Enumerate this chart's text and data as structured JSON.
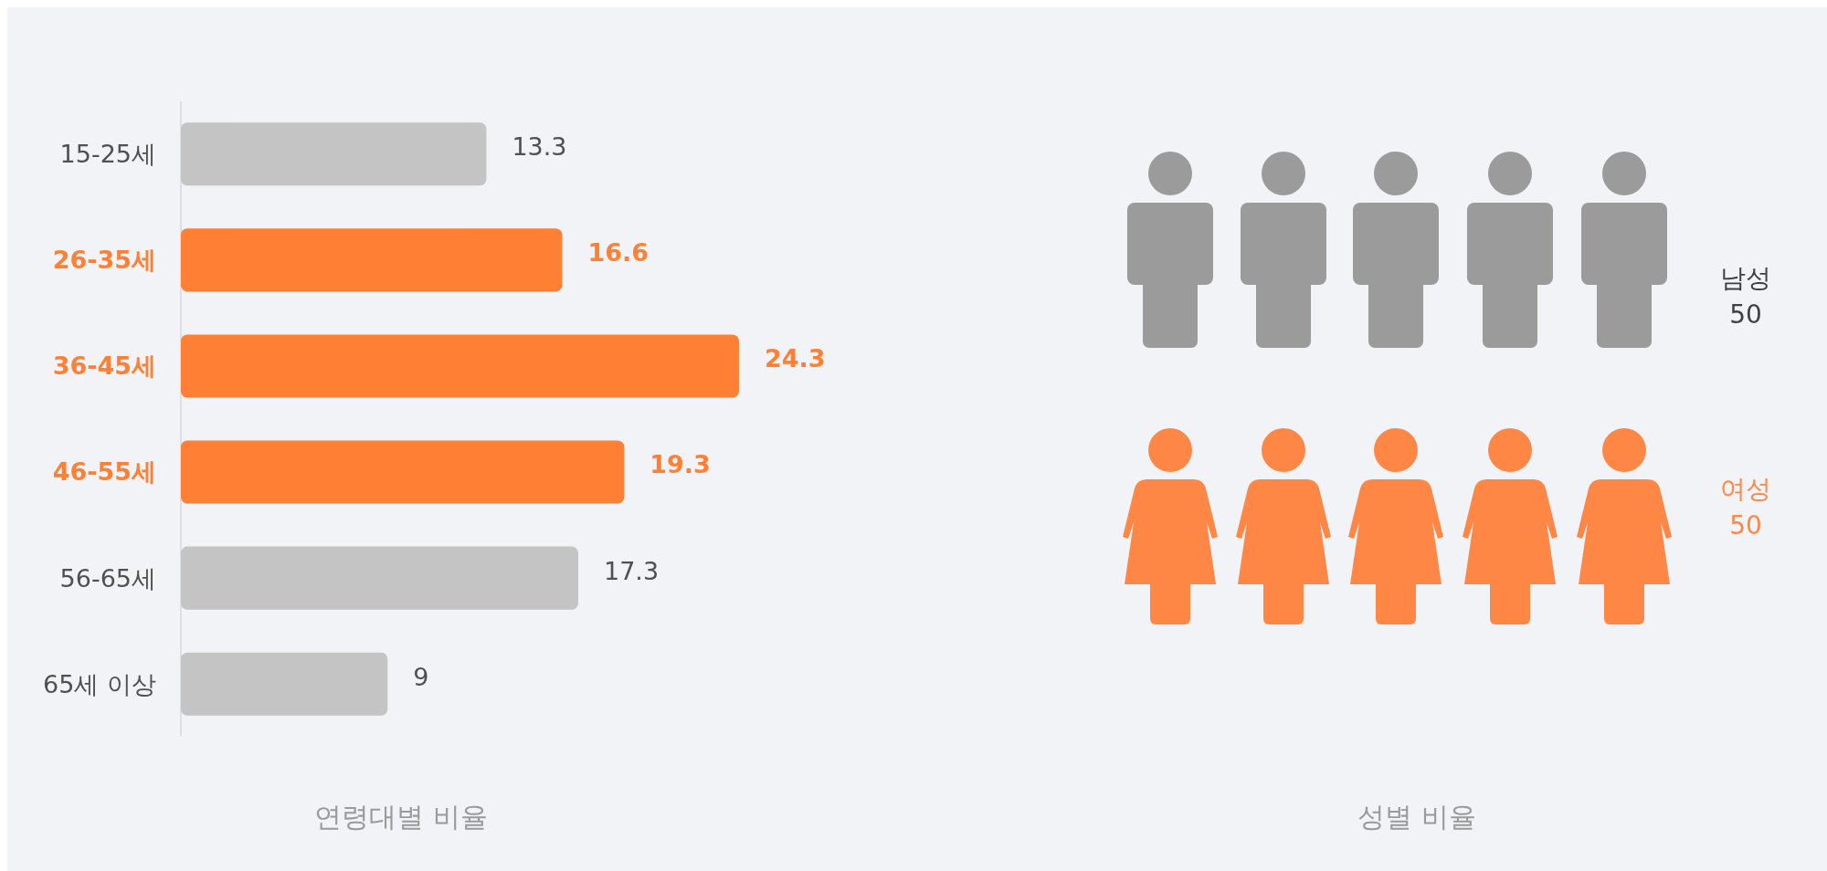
{
  "chart_data": [
    {
      "type": "bar",
      "orientation": "horizontal",
      "xlabel": "연령대별 비율",
      "categories": [
        "15-25세",
        "26-35세",
        "36-45세",
        "46-55세",
        "56-65세",
        "65세 이상"
      ],
      "values": [
        13.3,
        16.6,
        24.3,
        19.3,
        17.3,
        9
      ],
      "colors": [
        "#c4c4c4",
        "#ff8035",
        "#ff8035",
        "#ff8035",
        "#c4c4c4",
        "#c4c4c4"
      ],
      "data_labels": true
    },
    {
      "type": "other",
      "xlabel": "성별 비율",
      "categories": [
        "남성",
        "여성"
      ],
      "values": [
        50,
        50
      ],
      "colors": [
        "#9b9b9b",
        "#ff8745"
      ],
      "data_labels": true
    }
  ]
}
